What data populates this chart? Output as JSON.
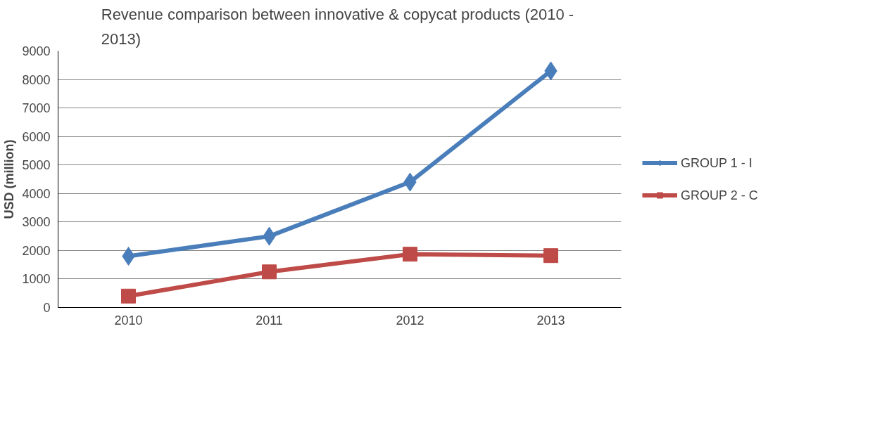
{
  "chart_data": {
    "type": "line",
    "title": "Revenue comparison  between innovative & copycat products (2010 - 2013)",
    "ylabel": "USD (million)",
    "categories": [
      "2010",
      "2011",
      "2012",
      "2013"
    ],
    "series": [
      {
        "name": "GROUP 1 - I",
        "color": "#4a7ebb",
        "marker": "diamond",
        "values": [
          1800,
          2500,
          4400,
          8300
        ]
      },
      {
        "name": "GROUP 2 - C",
        "color": "#be4b48",
        "marker": "square",
        "values": [
          400,
          1250,
          1870,
          1820
        ]
      }
    ],
    "ylim": [
      0,
      9000
    ],
    "yticks": [
      0,
      1000,
      2000,
      3000,
      4000,
      5000,
      6000,
      7000,
      8000,
      9000
    ],
    "grid": "y",
    "legend": "right"
  }
}
